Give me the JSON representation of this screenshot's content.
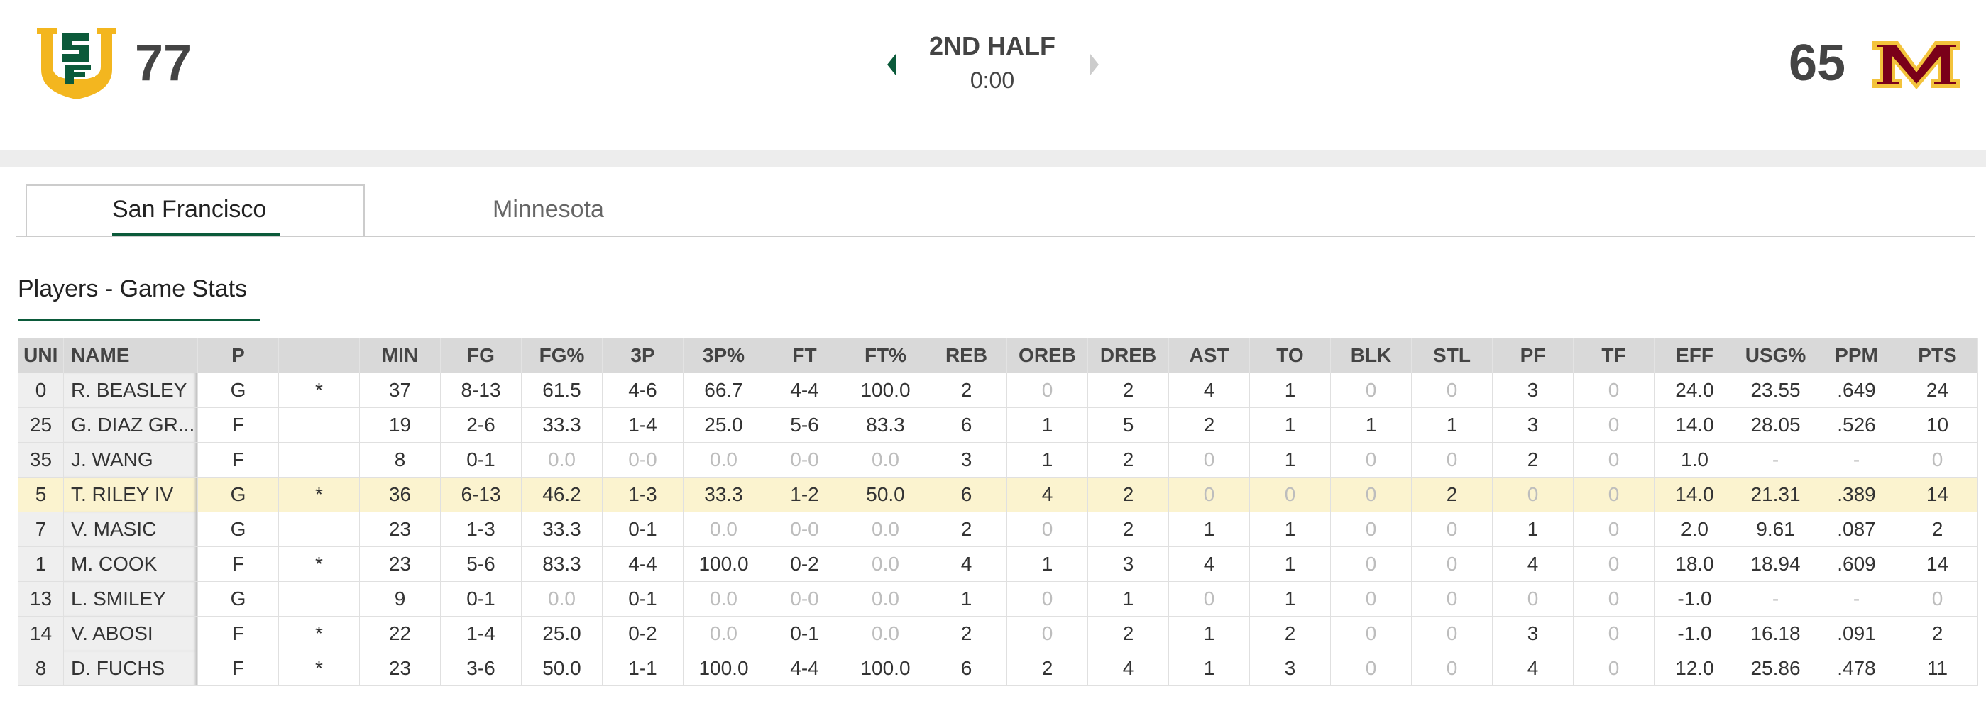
{
  "header": {
    "home_score": "77",
    "period": "2ND HALF",
    "clock": "0:00",
    "away_score": "65"
  },
  "tabs": [
    "San Francisco",
    "Minnesota"
  ],
  "section_title": "Players - Game Stats",
  "table": {
    "columns": [
      "UNI",
      "NAME",
      "P",
      null,
      "MIN",
      "FG",
      "FG%",
      "3P",
      "3P%",
      "FT",
      "FT%",
      "REB",
      "OREB",
      "DREB",
      "AST",
      "TO",
      "BLK",
      "STL",
      "PF",
      "TF",
      "EFF",
      "USG%",
      "PPM",
      "PTS"
    ],
    "rows": [
      [
        "0",
        "R. BEASLEY",
        "G",
        "*",
        "37",
        "8-13",
        "61.5",
        "4-6",
        "66.7",
        "4-4",
        "100.0",
        "2",
        "0",
        "2",
        "4",
        "1",
        "0",
        "0",
        "3",
        "0",
        "24.0",
        "23.55",
        ".649",
        "24"
      ],
      [
        "25",
        "G. DIAZ GR...",
        "F",
        null,
        "19",
        "2-6",
        "33.3",
        "1-4",
        "25.0",
        "5-6",
        "83.3",
        "6",
        "1",
        "5",
        "2",
        "1",
        "1",
        "1",
        "3",
        "0",
        "14.0",
        "28.05",
        ".526",
        "10"
      ],
      [
        "35",
        "J. WANG",
        "F",
        null,
        "8",
        "0-1",
        "0.0",
        "0-0",
        "0.0",
        "0-0",
        "0.0",
        "3",
        "1",
        "2",
        "0",
        "1",
        "0",
        "0",
        "2",
        "0",
        "1.0",
        "-",
        "-",
        "0"
      ],
      [
        "5",
        "T. RILEY IV",
        "G",
        "*",
        "36",
        "6-13",
        "46.2",
        "1-3",
        "33.3",
        "1-2",
        "50.0",
        "6",
        "4",
        "2",
        "0",
        "0",
        "0",
        "2",
        "0",
        "0",
        "14.0",
        "21.31",
        ".389",
        "14"
      ],
      [
        "7",
        "V. MASIC",
        "G",
        null,
        "23",
        "1-3",
        "33.3",
        "0-1",
        "0.0",
        "0-0",
        "0.0",
        "2",
        "0",
        "2",
        "1",
        "1",
        "0",
        "0",
        "1",
        "0",
        "2.0",
        "9.61",
        ".087",
        "2"
      ],
      [
        "1",
        "M. COOK",
        "F",
        "*",
        "23",
        "5-6",
        "83.3",
        "4-4",
        "100.0",
        "0-2",
        "0.0",
        "4",
        "1",
        "3",
        "4",
        "1",
        "0",
        "0",
        "4",
        "0",
        "18.0",
        "18.94",
        ".609",
        "14"
      ],
      [
        "13",
        "L. SMILEY",
        "G",
        null,
        "9",
        "0-1",
        "0.0",
        "0-1",
        "0.0",
        "0-0",
        "0.0",
        "1",
        "0",
        "1",
        "0",
        "1",
        "0",
        "0",
        "0",
        "0",
        "-1.0",
        "-",
        "-",
        "0"
      ],
      [
        "14",
        "V. ABOSI",
        "F",
        "*",
        "22",
        "1-4",
        "25.0",
        "0-2",
        "0.0",
        "0-1",
        "0.0",
        "2",
        "0",
        "2",
        "1",
        "2",
        "0",
        "0",
        "3",
        "0",
        "-1.0",
        "16.18",
        ".091",
        "2"
      ],
      [
        "8",
        "D. FUCHS",
        "F",
        "*",
        "23",
        "3-6",
        "50.0",
        "1-1",
        "100.0",
        "4-4",
        "100.0",
        "6",
        "2",
        "4",
        "1",
        "3",
        "0",
        "0",
        "4",
        "0",
        "12.0",
        "25.86",
        ".478",
        "11"
      ]
    ]
  }
}
